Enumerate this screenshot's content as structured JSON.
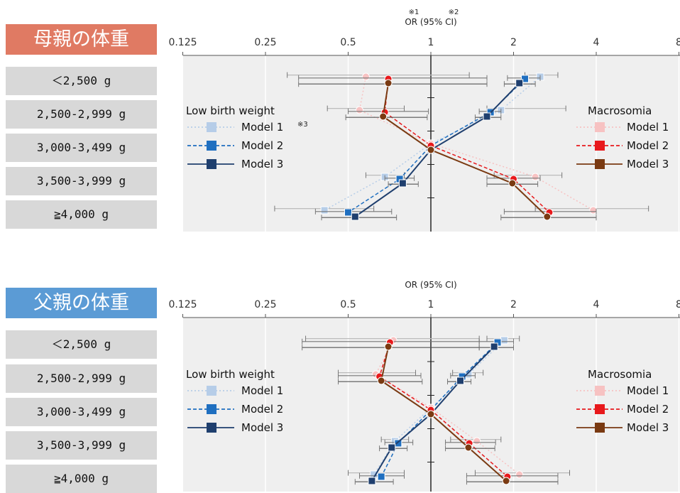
{
  "categories": [
    "＜2,500 g",
    "2,500-2,999 g",
    "3,000-3,499 g",
    "3,500-3,999 g",
    "≧4,000 g"
  ],
  "colors": {
    "mother_title_bg": "#e07a63",
    "father_title_bg": "#5b9bd5",
    "plot_bg": "#efefef",
    "lbw_model1": "#b6cde8",
    "lbw_model2": "#1f6fc0",
    "lbw_model3": "#1f3f6e",
    "mac_model1": "#f7c2c2",
    "mac_model2": "#e8191c",
    "mac_model3": "#7a3a12"
  },
  "legend": {
    "lbw_title": "Low birth weight",
    "mac_title": "Macrosomia",
    "models": [
      "Model 1",
      "Model 2",
      "Model 3"
    ]
  },
  "chart_data": [
    {
      "type": "forest",
      "panel_title": "母親の体重",
      "xlabel": "OR (95% CI)",
      "x_scale": "log2",
      "xlim": [
        0.125,
        8
      ],
      "xticks": [
        "0.125",
        "0.25",
        "0.5",
        "1",
        "2",
        "4",
        "8"
      ],
      "notes": {
        "n1": "※1",
        "n2": "※2",
        "n3": "※3"
      },
      "categories": [
        "＜2,500 g",
        "2,500-2,999 g",
        "3,000-3,499 g",
        "3,500-3,999 g",
        "≧4,000 g"
      ],
      "series": [
        {
          "name": "Low birth weight Model 1",
          "or": [
            2.5,
            1.8,
            1.0,
            0.68,
            0.41
          ],
          "lo": [
            2.2,
            1.6,
            1.0,
            0.58,
            0.27
          ],
          "hi": [
            2.9,
            3.1,
            1.0,
            0.8,
            0.62
          ]
        },
        {
          "name": "Low birth weight Model 2",
          "or": [
            2.2,
            1.65,
            1.0,
            0.77,
            0.5
          ],
          "lo": [
            1.9,
            1.5,
            1.0,
            0.68,
            0.38
          ],
          "hi": [
            2.5,
            1.8,
            1.0,
            0.87,
            0.72
          ]
        },
        {
          "name": "Low birth weight Model 3",
          "or": [
            2.1,
            1.6,
            1.0,
            0.79,
            0.53
          ],
          "lo": [
            1.85,
            1.45,
            1.0,
            0.7,
            0.4
          ],
          "hi": [
            2.4,
            1.8,
            1.0,
            0.9,
            0.75
          ]
        },
        {
          "name": "Macrosomia Model 1",
          "or": [
            0.58,
            0.55,
            1.0,
            2.4,
            3.9
          ],
          "lo": [
            0.3,
            0.42,
            1.0,
            1.7,
            2.4
          ],
          "hi": [
            1.38,
            0.8,
            1.0,
            3.0,
            6.2
          ]
        },
        {
          "name": "Macrosomia Model 2",
          "or": [
            0.7,
            0.68,
            1.0,
            2.0,
            2.7
          ],
          "lo": [
            0.33,
            0.5,
            1.0,
            1.6,
            1.85
          ],
          "hi": [
            1.6,
            0.98,
            1.0,
            2.5,
            4.0
          ]
        },
        {
          "name": "Macrosomia Model 3",
          "or": [
            0.7,
            0.67,
            1.0,
            1.98,
            2.65
          ],
          "lo": [
            0.33,
            0.49,
            1.0,
            1.6,
            1.8
          ],
          "hi": [
            1.6,
            0.97,
            1.0,
            2.45,
            4.0
          ]
        }
      ]
    },
    {
      "type": "forest",
      "panel_title": "父親の体重",
      "xlabel": "OR (95% CI)",
      "x_scale": "log2",
      "xlim": [
        0.125,
        8
      ],
      "xticks": [
        "0.125",
        "0.25",
        "0.5",
        "1",
        "2",
        "4",
        "8"
      ],
      "categories": [
        "＜2,500 g",
        "2,500-2,999 g",
        "3,000-3,499 g",
        "3,500-3,999 g",
        "≧4,000 g"
      ],
      "series": [
        {
          "name": "Low birth weight Model 1",
          "or": [
            1.85,
            1.37,
            1.0,
            0.74,
            0.62
          ],
          "lo": [
            1.6,
            1.2,
            1.0,
            0.66,
            0.5
          ],
          "hi": [
            2.1,
            1.55,
            1.0,
            0.83,
            0.8
          ]
        },
        {
          "name": "Low birth weight Model 2",
          "or": [
            1.75,
            1.3,
            1.0,
            0.76,
            0.66
          ],
          "lo": [
            1.5,
            1.18,
            1.0,
            0.68,
            0.55
          ],
          "hi": [
            2.0,
            1.45,
            1.0,
            0.86,
            0.8
          ]
        },
        {
          "name": "Low birth weight Model 3",
          "or": [
            1.7,
            1.28,
            1.0,
            0.72,
            0.61
          ],
          "lo": [
            1.5,
            1.15,
            1.0,
            0.65,
            0.53
          ],
          "hi": [
            2.0,
            1.4,
            1.0,
            0.82,
            0.73
          ]
        },
        {
          "name": "Macrosomia Model 1",
          "or": [
            0.73,
            0.63,
            1.0,
            1.47,
            2.1
          ],
          "lo": [
            0.35,
            0.46,
            1.0,
            1.18,
            1.45
          ],
          "hi": [
            1.5,
            0.88,
            1.0,
            1.8,
            3.2
          ]
        },
        {
          "name": "Macrosomia Model 2",
          "or": [
            0.71,
            0.65,
            1.0,
            1.38,
            1.9
          ],
          "lo": [
            0.34,
            0.46,
            1.0,
            1.13,
            1.35
          ],
          "hi": [
            1.5,
            0.92,
            1.0,
            1.72,
            2.9
          ]
        },
        {
          "name": "Macrosomia Model 3",
          "or": [
            0.7,
            0.66,
            1.0,
            1.37,
            1.88
          ],
          "lo": [
            0.34,
            0.46,
            1.0,
            1.13,
            1.35
          ],
          "hi": [
            1.5,
            0.93,
            1.0,
            1.71,
            2.9
          ]
        }
      ]
    }
  ]
}
